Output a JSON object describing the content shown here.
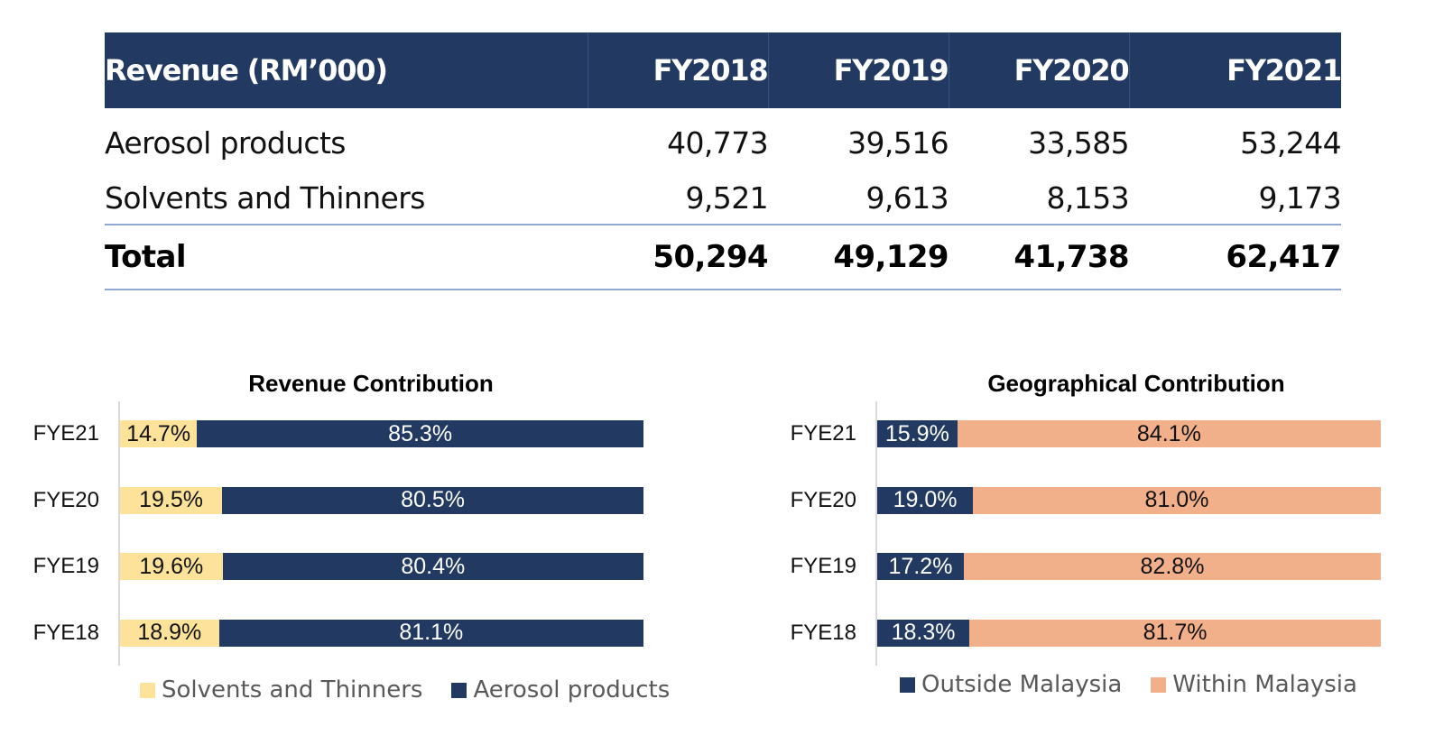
{
  "table": {
    "headers": [
      "Revenue (RM’000)",
      "FY2018",
      "FY2019",
      "FY2020",
      "FY2021"
    ],
    "rows": [
      {
        "label": "Aerosol products",
        "values": [
          "40,773",
          "39,516",
          "33,585",
          "53,244"
        ]
      },
      {
        "label": "Solvents and Thinners",
        "values": [
          "9,521",
          "9,613",
          "8,153",
          "9,173"
        ]
      }
    ],
    "total": {
      "label": "Total",
      "values": [
        "50,294",
        "49,129",
        "41,738",
        "62,417"
      ]
    },
    "header_bg": "#223962",
    "rule_color": "#8fa8d8"
  },
  "chart_data": [
    {
      "type": "bar",
      "orientation": "horizontal",
      "stacked": "percent",
      "title": "Revenue Contribution",
      "categories": [
        "FYE21",
        "FYE20",
        "FYE19",
        "FYE18"
      ],
      "series": [
        {
          "name": "Solvents and Thinners",
          "color": "#fde29a",
          "label_color": "#111111",
          "values": [
            14.7,
            19.5,
            19.6,
            18.9
          ],
          "labels": [
            "14.7%",
            "19.5%",
            "19.6%",
            "18.9%"
          ]
        },
        {
          "name": "Aerosol products",
          "color": "#223962",
          "label_color": "#ffffff",
          "values": [
            85.3,
            80.5,
            80.4,
            81.1
          ],
          "labels": [
            "85.3%",
            "80.5%",
            "80.4%",
            "81.1%"
          ]
        }
      ],
      "xlim": [
        0,
        100
      ],
      "grid": false,
      "legend": "bottom"
    },
    {
      "type": "bar",
      "orientation": "horizontal",
      "stacked": "percent",
      "title": "Geographical Contribution",
      "categories": [
        "FYE21",
        "FYE20",
        "FYE19",
        "FYE18"
      ],
      "series": [
        {
          "name": "Outside Malaysia",
          "color": "#223962",
          "label_color": "#ffffff",
          "values": [
            15.9,
            19.0,
            17.2,
            18.3
          ],
          "labels": [
            "15.9%",
            "19.0%",
            "17.2%",
            "18.3%"
          ]
        },
        {
          "name": "Within Malaysia",
          "color": "#f2b08a",
          "label_color": "#111111",
          "values": [
            84.1,
            81.0,
            82.8,
            81.7
          ],
          "labels": [
            "84.1%",
            "81.0%",
            "82.8%",
            "81.7%"
          ]
        }
      ],
      "xlim": [
        0,
        100
      ],
      "grid": false,
      "legend": "bottom"
    }
  ]
}
